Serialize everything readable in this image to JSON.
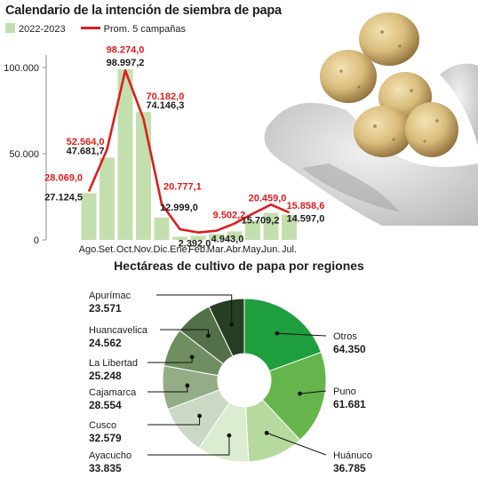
{
  "colors": {
    "bar": "#c4dfae",
    "line": "#d91e1e",
    "red_text": "#d91e1e",
    "axis": "#888888",
    "slices": [
      "#1e9e3c",
      "#66b44c",
      "#b6d99e",
      "#dbecd0",
      "#cdd8c4",
      "#93ad86",
      "#6f8f62",
      "#537148",
      "#263e22"
    ]
  },
  "chart_data": [
    {
      "type": "bar",
      "title": "Calendario de la intención de siembra de papa",
      "categories": [
        "Ago.",
        "Set.",
        "Oct.",
        "Nov.",
        "Dic.",
        "Ene.",
        "Feb.",
        "Mar.",
        "Abr.",
        "May.",
        "Jun.",
        "Jul."
      ],
      "series": [
        {
          "name": "2022-2023",
          "type": "bar",
          "values": [
            27124.5,
            47681.7,
            98997.2,
            74146.3,
            12999.0,
            1800,
            2392.0,
            3400,
            4943.0,
            11200,
            15709.2,
            14597.0
          ]
        },
        {
          "name": "Prom. 5 campañas",
          "type": "line",
          "values": [
            28069.0,
            52564.0,
            98274.0,
            70182.0,
            20777.1,
            6200,
            4300,
            5300,
            9502.2,
            15200,
            20459.0,
            15858.6
          ]
        }
      ],
      "data_labels": {
        "bar": [
          {
            "index": 0,
            "text": "27.124,5"
          },
          {
            "index": 1,
            "text": "47.681,7"
          },
          {
            "index": 2,
            "text": "98.997,2"
          },
          {
            "index": 3,
            "text": "74.146,3"
          },
          {
            "index": 4,
            "text": "12.999,0"
          },
          {
            "index": 6,
            "text": "2.392,0"
          },
          {
            "index": 8,
            "text": "4.943,0"
          },
          {
            "index": 10,
            "text": "15.709,2"
          },
          {
            "index": 11,
            "text": "14.597,0"
          }
        ],
        "line": [
          {
            "index": 0,
            "text": "28.069,0"
          },
          {
            "index": 1,
            "text": "52.564,0"
          },
          {
            "index": 2,
            "text": "98.274,0"
          },
          {
            "index": 3,
            "text": "70.182,0"
          },
          {
            "index": 4,
            "text": "20.777,1"
          },
          {
            "index": 8,
            "text": "9.502,2"
          },
          {
            "index": 10,
            "text": "20.459,0"
          },
          {
            "index": 11,
            "text": "15.858,6"
          }
        ]
      },
      "y_ticks": [
        {
          "value": 0,
          "label": "0"
        },
        {
          "value": 50000,
          "label": "50.000"
        },
        {
          "value": 100000,
          "label": "100.000"
        }
      ],
      "ylim": [
        0,
        110000
      ],
      "grid": false,
      "legend_position": "top-left"
    },
    {
      "type": "pie",
      "title": "Hectáreas de cultivo de papa por regiones",
      "donut": true,
      "slices": [
        {
          "label": "Otros",
          "value": 64350,
          "value_text": "64.350"
        },
        {
          "label": "Puno",
          "value": 61681,
          "value_text": "61.681"
        },
        {
          "label": "Huánuco",
          "value": 36785,
          "value_text": "36.785"
        },
        {
          "label": "Ayacucho",
          "value": 33835,
          "value_text": "33.835"
        },
        {
          "label": "Cusco",
          "value": 32579,
          "value_text": "32.579"
        },
        {
          "label": "Cajamarca",
          "value": 28554,
          "value_text": "28.554"
        },
        {
          "label": "La Libertad",
          "value": 25248,
          "value_text": "25.248"
        },
        {
          "label": "Huancavelica",
          "value": 24562,
          "value_text": "24.562"
        },
        {
          "label": "Apurímac",
          "value": 23571,
          "value_text": "23.571"
        }
      ]
    }
  ]
}
